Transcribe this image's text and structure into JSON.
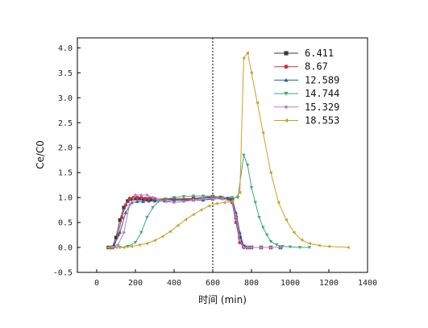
{
  "chart_data": {
    "type": "line",
    "title": "",
    "xlabel": "时间 (min)",
    "ylabel": "Ce/C0",
    "xlim": [
      -100,
      1400
    ],
    "ylim": [
      -0.5,
      4.2
    ],
    "xticks": [
      0,
      200,
      400,
      600,
      800,
      1000,
      1200,
      1400
    ],
    "yticks": [
      -0.5,
      0.0,
      0.5,
      1.0,
      1.5,
      2.0,
      2.5,
      3.0,
      3.5,
      4.0
    ],
    "xtick_labels": [
      "0",
      "200",
      "400",
      "600",
      "800",
      "1000",
      "1200",
      "1400"
    ],
    "ytick_labels": [
      "-0.5",
      "0.0",
      "0.5",
      "1.0",
      "1.5",
      "2.0",
      "2.5",
      "3.0",
      "3.5",
      "4.0"
    ],
    "vline_x": 600,
    "legend_position": "top-right",
    "grid": false,
    "series": [
      {
        "name": "6.411",
        "color": "#3a3a3a",
        "marker": "square",
        "x": [
          60,
          80,
          100,
          120,
          140,
          160,
          180,
          200,
          220,
          240,
          260,
          280,
          300,
          400,
          500,
          600,
          640,
          680,
          700,
          720,
          740,
          760,
          780,
          800,
          850,
          900,
          950
        ],
        "y": [
          0.0,
          0.0,
          0.2,
          0.55,
          0.8,
          0.93,
          0.97,
          0.98,
          0.98,
          0.97,
          0.97,
          0.97,
          0.97,
          0.97,
          0.98,
          1.02,
          1.0,
          0.98,
          0.95,
          0.6,
          0.2,
          0.02,
          0.0,
          0.0,
          0.0,
          0.0,
          0.0
        ]
      },
      {
        "name": "8.67",
        "color": "#c8343a",
        "marker": "circle",
        "x": [
          70,
          90,
          110,
          130,
          150,
          170,
          190,
          210,
          230,
          250,
          270,
          300,
          350,
          400,
          450,
          500,
          550,
          600,
          640,
          680,
          700,
          720,
          740,
          760,
          780,
          800,
          850,
          900
        ],
        "y": [
          0.0,
          0.02,
          0.25,
          0.6,
          0.85,
          0.98,
          1.0,
          1.0,
          1.0,
          0.98,
          0.98,
          0.97,
          0.96,
          0.96,
          0.96,
          0.97,
          0.98,
          1.0,
          1.0,
          0.98,
          0.9,
          0.5,
          0.1,
          0.0,
          0.0,
          0.0,
          0.0,
          0.0
        ]
      },
      {
        "name": "12.589",
        "color": "#2a5ca8",
        "marker": "triangle-up",
        "x": [
          60,
          90,
          120,
          150,
          180,
          210,
          240,
          270,
          300,
          350,
          400,
          450,
          500,
          550,
          600,
          650,
          700,
          720,
          740,
          760,
          780,
          800,
          850,
          900
        ],
        "y": [
          0.0,
          0.05,
          0.3,
          0.7,
          0.9,
          0.92,
          0.92,
          0.93,
          0.93,
          0.93,
          0.94,
          0.94,
          0.95,
          0.95,
          0.97,
          0.98,
          0.98,
          0.7,
          0.3,
          0.02,
          0.0,
          0.0,
          0.0,
          0.0
        ]
      },
      {
        "name": "14.744",
        "color": "#3fa77a",
        "marker": "triangle-down",
        "x": [
          80,
          120,
          160,
          200,
          230,
          260,
          290,
          320,
          360,
          400,
          450,
          500,
          550,
          600,
          650,
          700,
          730,
          760,
          780,
          800,
          820,
          840,
          860,
          880,
          900,
          930,
          960,
          1000,
          1050,
          1100
        ],
        "y": [
          0.0,
          0.0,
          0.02,
          0.1,
          0.3,
          0.6,
          0.8,
          0.92,
          0.97,
          1.0,
          1.02,
          1.03,
          1.03,
          1.03,
          1.0,
          1.0,
          1.0,
          1.85,
          1.65,
          1.2,
          0.9,
          0.6,
          0.4,
          0.25,
          0.12,
          0.05,
          0.02,
          0.01,
          0.0,
          0.0
        ]
      },
      {
        "name": "15.329",
        "color": "#b57fd0",
        "marker": "diamond",
        "x": [
          80,
          110,
          140,
          170,
          200,
          230,
          260,
          290,
          320,
          360,
          400,
          450,
          500,
          550,
          600,
          650,
          700,
          720,
          740,
          760,
          780,
          800,
          850,
          900,
          950
        ],
        "y": [
          0.0,
          0.05,
          0.3,
          0.85,
          1.05,
          1.05,
          1.05,
          1.0,
          0.95,
          0.92,
          0.9,
          0.92,
          0.95,
          0.98,
          0.98,
          0.97,
          0.92,
          0.6,
          0.15,
          0.0,
          0.0,
          0.0,
          0.0,
          0.0,
          0.0
        ]
      },
      {
        "name": "18.553",
        "color": "#c9a227",
        "marker": "triangle-left",
        "x": [
          60,
          100,
          140,
          180,
          220,
          260,
          300,
          340,
          380,
          420,
          460,
          500,
          540,
          580,
          620,
          660,
          700,
          740,
          760,
          780,
          800,
          830,
          860,
          900,
          940,
          980,
          1020,
          1060,
          1100,
          1150,
          1200,
          1300
        ],
        "y": [
          0.0,
          0.0,
          0.0,
          0.02,
          0.05,
          0.08,
          0.14,
          0.22,
          0.32,
          0.44,
          0.56,
          0.66,
          0.75,
          0.83,
          0.88,
          0.9,
          0.92,
          1.1,
          3.8,
          3.9,
          3.5,
          2.9,
          2.3,
          1.5,
          0.9,
          0.55,
          0.3,
          0.15,
          0.08,
          0.04,
          0.02,
          0.0
        ]
      }
    ]
  }
}
